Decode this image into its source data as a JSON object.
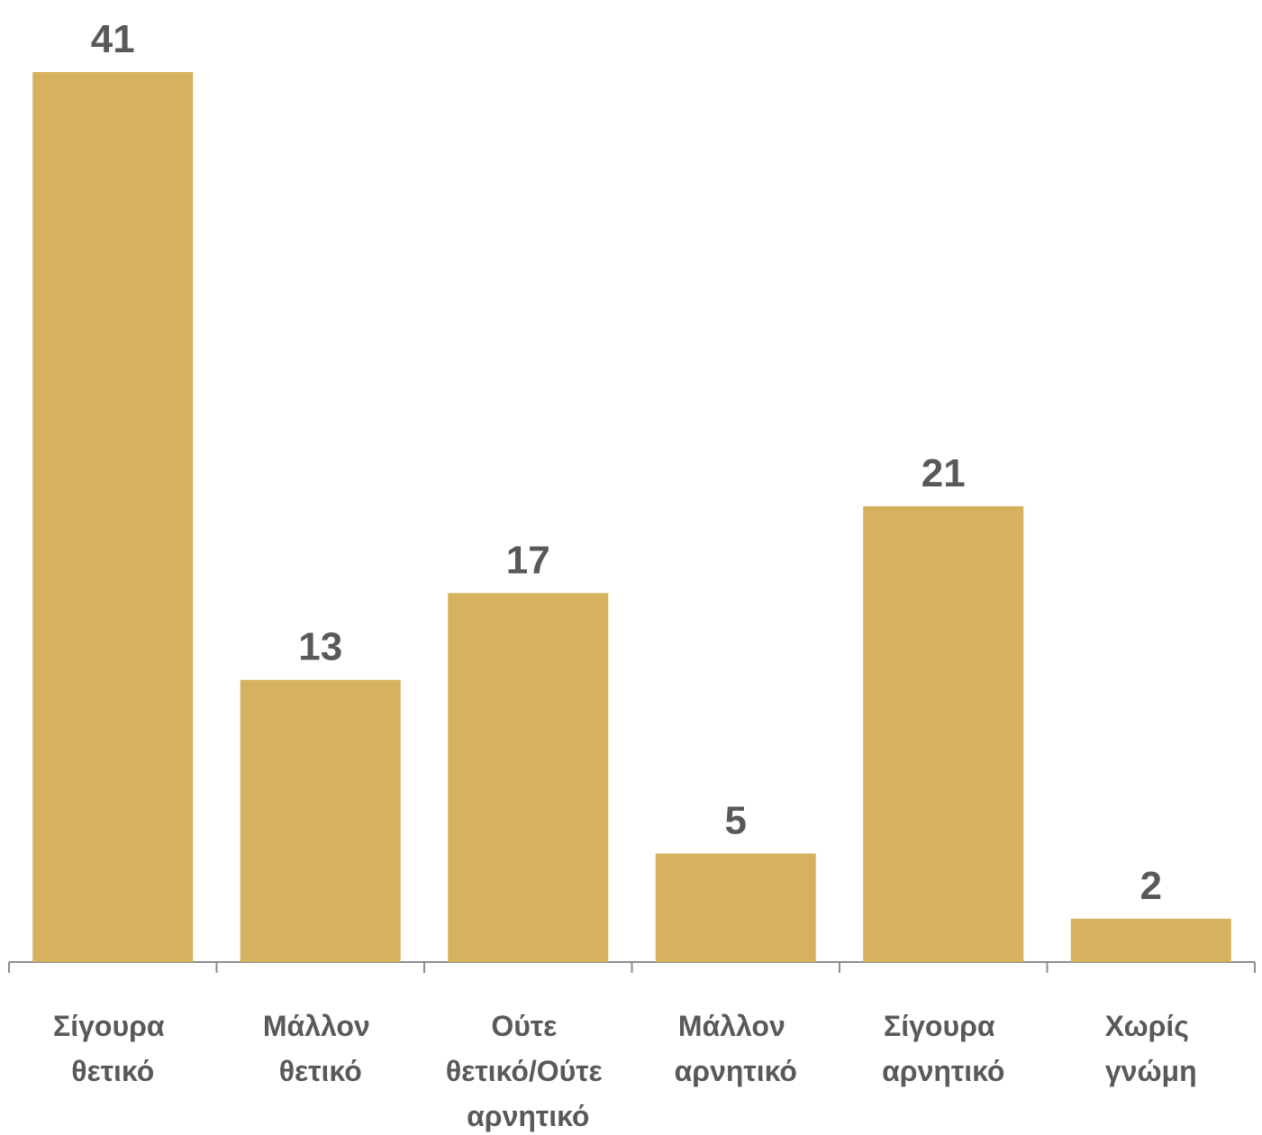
{
  "chart_data": {
    "type": "bar",
    "categories": [
      "Σίγουρα θετικό",
      "Μάλλον θετικό",
      "Ούτε θετικό/Ούτε αρνητικό",
      "Μάλλον αρνητικό",
      "Σίγουρα αρνητικό",
      "Χωρίς γνώμη"
    ],
    "values": [
      41,
      13,
      17,
      5,
      21,
      2
    ],
    "color": "#d6b25e"
  }
}
